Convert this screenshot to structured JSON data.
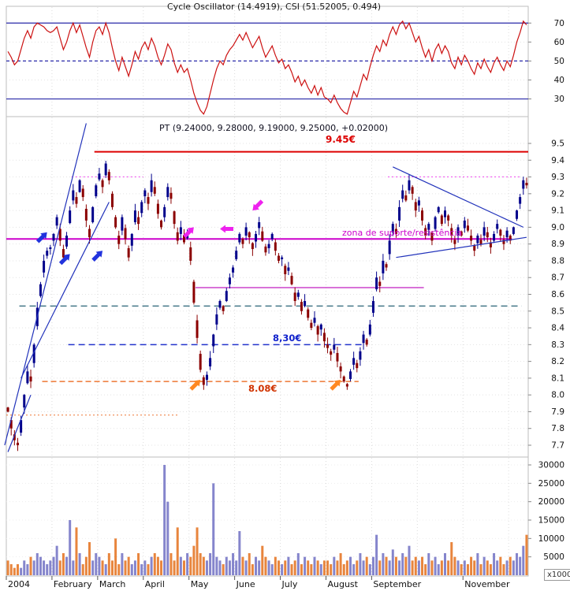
{
  "titles": {
    "indicator": "Cycle Oscillator (14.4919), CSI (51.52005, 0.494)",
    "symbol": "PT (9.24000, 9.28000, 9.19000, 9.25000, +0.02000)"
  },
  "annotations": {
    "resistance_label": "9.45€",
    "zone_label": "zona de suporte/resistência",
    "level_830_label": "8,30€",
    "level_808_label": "8.08€",
    "volume_unit": "x1000"
  },
  "axes": {
    "price_ticks": [
      "9.5",
      "9.4",
      "9.3",
      "9.2",
      "9.1",
      "9.0",
      "8.9",
      "8.8",
      "8.7",
      "8.6",
      "8.5",
      "8.4",
      "8.3",
      "8.2",
      "8.1",
      "8.0",
      "7.9",
      "7.8",
      "7.7"
    ],
    "oscillator_ticks": [
      "70",
      "60",
      "50",
      "40",
      "30"
    ],
    "volume_ticks": [
      "30000",
      "25000",
      "20000",
      "15000",
      "10000",
      "5000"
    ],
    "months": [
      {
        "label": "2004",
        "bar": 0
      },
      {
        "label": "February",
        "bar": 14
      },
      {
        "label": "March",
        "bar": 28
      },
      {
        "label": "April",
        "bar": 42
      },
      {
        "label": "May",
        "bar": 56
      },
      {
        "label": "June",
        "bar": 70
      },
      {
        "label": "July",
        "bar": 84
      },
      {
        "label": "August",
        "bar": 98
      },
      {
        "label": "September",
        "bar": 112
      },
      {
        "label": "November",
        "bar": 140
      }
    ]
  },
  "chart_data": [
    {
      "type": "line",
      "name": "cycle-oscillator",
      "title": "Cycle Oscillator (14.4919), CSI (51.52005, 0.494)",
      "ylim": [
        20,
        80
      ],
      "color": "#cc1111",
      "ref_lines": [
        {
          "v": 70,
          "style": "solid"
        },
        {
          "v": 50,
          "style": "dashed"
        },
        {
          "v": 30,
          "style": "solid"
        }
      ],
      "values": [
        55,
        52,
        48,
        50,
        56,
        62,
        66,
        62,
        68,
        70,
        69,
        68,
        66,
        65,
        66,
        68,
        62,
        56,
        60,
        66,
        70,
        65,
        69,
        63,
        57,
        52,
        60,
        66,
        68,
        64,
        70,
        65,
        57,
        50,
        45,
        52,
        47,
        42,
        48,
        55,
        51,
        57,
        60,
        56,
        62,
        58,
        52,
        48,
        53,
        59,
        56,
        49,
        44,
        48,
        44,
        46,
        40,
        33,
        28,
        24,
        22,
        26,
        33,
        40,
        46,
        50,
        48,
        53,
        56,
        58,
        61,
        64,
        61,
        65,
        61,
        57,
        60,
        63,
        57,
        52,
        55,
        58,
        53,
        49,
        51,
        46,
        48,
        44,
        39,
        42,
        37,
        40,
        36,
        33,
        37,
        32,
        36,
        31,
        30,
        28,
        32,
        28,
        25,
        23,
        22,
        28,
        34,
        31,
        37,
        43,
        40,
        47,
        53,
        58,
        55,
        61,
        58,
        64,
        68,
        64,
        69,
        71,
        67,
        70,
        65,
        60,
        63,
        57,
        52,
        56,
        50,
        56,
        59,
        54,
        58,
        55,
        49,
        46,
        52,
        48,
        53,
        50,
        46,
        43,
        49,
        46,
        51,
        47,
        44,
        49,
        52,
        48,
        45,
        50,
        47,
        53,
        60,
        65,
        71,
        69
      ]
    },
    {
      "type": "candlestick",
      "name": "PT-price",
      "title": "PT (9.24000, 9.28000, 9.19000, 9.25000, +0.02000)",
      "ylim": [
        7.65,
        9.63
      ],
      "up_color": "#00008b",
      "down_color": "#8b0000",
      "last_ohlc": {
        "open": 9.24,
        "high": 9.28,
        "low": 9.19,
        "close": 9.25,
        "change": "+0.02000"
      },
      "closes": [
        7.9,
        7.8,
        7.73,
        7.7,
        7.85,
        8.0,
        8.14,
        8.08,
        8.3,
        8.52,
        8.66,
        8.8,
        8.86,
        8.88,
        8.96,
        9.06,
        8.92,
        8.82,
        8.95,
        9.1,
        9.22,
        9.14,
        9.28,
        9.18,
        9.04,
        8.94,
        9.12,
        9.25,
        9.32,
        9.24,
        9.38,
        9.28,
        9.12,
        9.0,
        8.9,
        9.06,
        8.93,
        8.82,
        8.96,
        9.1,
        9.02,
        9.15,
        9.22,
        9.14,
        9.28,
        9.2,
        9.08,
        9.0,
        9.12,
        9.24,
        9.17,
        9.02,
        8.92,
        9.0,
        8.91,
        8.96,
        8.8,
        8.55,
        8.34,
        8.15,
        8.06,
        8.12,
        8.22,
        8.36,
        8.48,
        8.56,
        8.5,
        8.62,
        8.7,
        8.76,
        8.86,
        8.96,
        8.9,
        9.0,
        8.94,
        8.87,
        8.96,
        9.03,
        8.92,
        8.85,
        8.9,
        8.96,
        8.86,
        8.8,
        8.82,
        8.72,
        8.76,
        8.66,
        8.56,
        8.61,
        8.5,
        8.56,
        8.46,
        8.4,
        8.46,
        8.36,
        8.42,
        8.32,
        8.28,
        8.24,
        8.3,
        8.2,
        8.14,
        8.08,
        8.05,
        8.14,
        8.22,
        8.16,
        8.26,
        8.36,
        8.3,
        8.42,
        8.56,
        8.7,
        8.65,
        8.8,
        8.76,
        8.92,
        9.02,
        8.96,
        9.12,
        9.22,
        9.16,
        9.28,
        9.2,
        9.1,
        9.16,
        9.04,
        8.95,
        9.02,
        8.92,
        9.06,
        9.12,
        9.02,
        9.1,
        9.04,
        8.95,
        8.9,
        9.0,
        8.95,
        9.04,
        8.98,
        8.92,
        8.86,
        8.95,
        8.9,
        9.0,
        8.94,
        8.88,
        8.96,
        9.02,
        8.95,
        8.9,
        8.98,
        8.92,
        9.0,
        9.1,
        9.18,
        9.28,
        9.25
      ]
    },
    {
      "type": "bar",
      "name": "volume",
      "unit": "x1000",
      "ylim": [
        0,
        30000
      ],
      "up_color": "#8585cc",
      "down_color": "#e8853d",
      "values": [
        4,
        3,
        2,
        3,
        2,
        4,
        3,
        5,
        4,
        6,
        5,
        4,
        3,
        4,
        5,
        8,
        4,
        6,
        5,
        15,
        4,
        13,
        6,
        3,
        5,
        9,
        4,
        6,
        5,
        4,
        3,
        6,
        4,
        10,
        3,
        6,
        4,
        5,
        3,
        4,
        6,
        3,
        4,
        3,
        5,
        6,
        5,
        4,
        30,
        20,
        6,
        4,
        13,
        5,
        4,
        6,
        5,
        8,
        13,
        6,
        5,
        4,
        6,
        25,
        5,
        4,
        3,
        5,
        4,
        6,
        4,
        12,
        5,
        4,
        6,
        3,
        5,
        4,
        8,
        5,
        4,
        3,
        5,
        4,
        3,
        4,
        5,
        3,
        4,
        6,
        3,
        5,
        4,
        3,
        5,
        4,
        3,
        4,
        4,
        3,
        5,
        4,
        6,
        3,
        4,
        5,
        3,
        4,
        6,
        4,
        5,
        3,
        5,
        11,
        4,
        6,
        5,
        4,
        7,
        5,
        4,
        6,
        5,
        8,
        4,
        5,
        4,
        5,
        3,
        6,
        4,
        5,
        3,
        4,
        6,
        4,
        9,
        5,
        4,
        3,
        4,
        3,
        5,
        4,
        6,
        3,
        5,
        4,
        3,
        6,
        4,
        5,
        3,
        4,
        5,
        4,
        6,
        5,
        8,
        11
      ]
    }
  ],
  "overlays": {
    "month_starts": [
      14,
      28,
      42,
      56,
      70,
      84,
      98,
      112,
      126,
      140,
      154
    ],
    "h_lines": [
      {
        "price": 9.45,
        "bar1": 27,
        "bar2": 160,
        "color": "#dd0000",
        "w": 2,
        "dash": ""
      },
      {
        "price": 8.93,
        "bar1": 0,
        "bar2": 155,
        "color": "#cc00cc",
        "w": 2,
        "dash": ""
      },
      {
        "price": 8.64,
        "bar1": 58,
        "bar2": 128,
        "color": "#cc44cc",
        "w": 1.5,
        "dash": ""
      },
      {
        "price": 9.3,
        "bar1": 20,
        "bar2": 42,
        "color": "#ee44ee",
        "w": 1,
        "dash": "2,3"
      },
      {
        "price": 9.3,
        "bar1": 117,
        "bar2": 158,
        "color": "#ee44ee",
        "w": 1,
        "dash": "2,3"
      },
      {
        "price": 8.53,
        "bar1": 4,
        "bar2": 158,
        "color": "#447788",
        "w": 1.5,
        "dash": "8,5"
      },
      {
        "price": 8.3,
        "bar1": 19,
        "bar2": 110,
        "color": "#2233cc",
        "w": 1.5,
        "dash": "8,5"
      },
      {
        "price": 8.08,
        "bar1": 11,
        "bar2": 108,
        "color": "#ee7733",
        "w": 1.5,
        "dash": "7,4"
      },
      {
        "price": 7.88,
        "bar1": 0,
        "bar2": 53,
        "color": "#ee7733",
        "w": 1,
        "dash": "2,3"
      }
    ],
    "trend_lines": [
      {
        "b1": -1,
        "p1": 7.7,
        "b2": 24,
        "p2": 9.62,
        "color": "#2233bb"
      },
      {
        "b1": 4,
        "p1": 8.1,
        "b2": 31,
        "p2": 9.15,
        "color": "#2233bb"
      },
      {
        "b1": 0,
        "p1": 7.66,
        "b2": 7,
        "p2": 8.0,
        "color": "#2233bb"
      },
      {
        "b1": 118,
        "p1": 9.36,
        "b2": 158,
        "p2": 9.0,
        "color": "#2233bb"
      },
      {
        "b1": 119,
        "p1": 8.82,
        "b2": 159,
        "p2": 8.94,
        "color": "#2233bb"
      }
    ],
    "arrows": [
      {
        "bar": 12,
        "price": 8.97,
        "deg": -45,
        "color": "#2233dd"
      },
      {
        "bar": 19,
        "price": 8.84,
        "deg": -45,
        "color": "#2233dd"
      },
      {
        "bar": 29,
        "price": 8.86,
        "deg": -45,
        "color": "#2233dd"
      },
      {
        "bar": 57,
        "price": 9.0,
        "deg": -45,
        "color": "#ee22ee"
      },
      {
        "bar": 65,
        "price": 8.99,
        "deg": 180,
        "color": "#ee22ee"
      },
      {
        "bar": 75,
        "price": 9.1,
        "deg": 135,
        "color": "#ee22ee"
      },
      {
        "bar": 59,
        "price": 8.09,
        "deg": -45,
        "color": "#ff8822"
      },
      {
        "bar": 102,
        "price": 8.09,
        "deg": -45,
        "color": "#ff8822"
      }
    ]
  }
}
